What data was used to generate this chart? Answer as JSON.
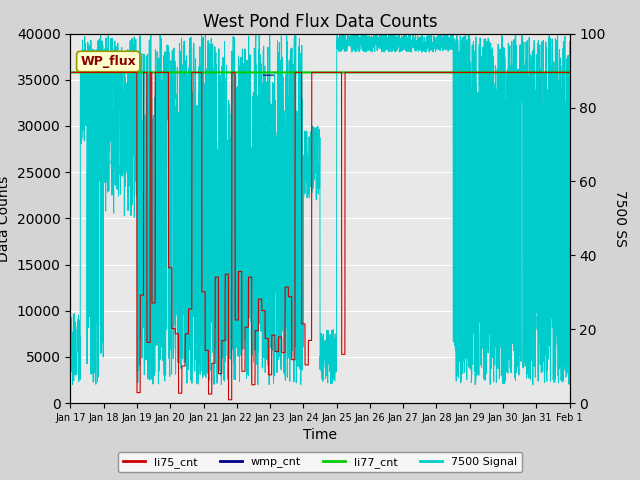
{
  "title": "West Pond Flux Data Counts",
  "xlabel": "Time",
  "ylabel_left": "Data Counts",
  "ylabel_right": "7500 SS",
  "ylim_left": [
    0,
    40000
  ],
  "ylim_right": [
    0,
    100
  ],
  "fig_facecolor": "#d4d4d4",
  "plot_bg_color": "#e8e8e8",
  "grid_color": "#ffffff",
  "wp_flux_box_color": "#ffffcc",
  "wp_flux_text_color": "#8b0000",
  "wp_flux_edge_color": "#999900",
  "li75_color": "#cc0000",
  "wmp_color": "#00008b",
  "li77_color": "#00cc00",
  "signal_color": "#00cccc",
  "li77_value": 35800,
  "x_tick_labels": [
    "Jan 17",
    "Jan 18",
    "Jan 19",
    "Jan 20",
    "Jan 21",
    "Jan 22",
    "Jan 23",
    "Jan 24",
    "Jan 25",
    "Jan 26",
    "Jan 27",
    "Jan 28",
    "Jan 29",
    "Jan 30",
    "Jan 31",
    "Feb 1"
  ],
  "x_tick_positions": [
    0,
    1,
    2,
    3,
    4,
    5,
    6,
    7,
    8,
    9,
    10,
    11,
    12,
    13,
    14,
    15
  ],
  "title_fontsize": 12,
  "label_fontsize": 10,
  "tick_fontsize": 7
}
